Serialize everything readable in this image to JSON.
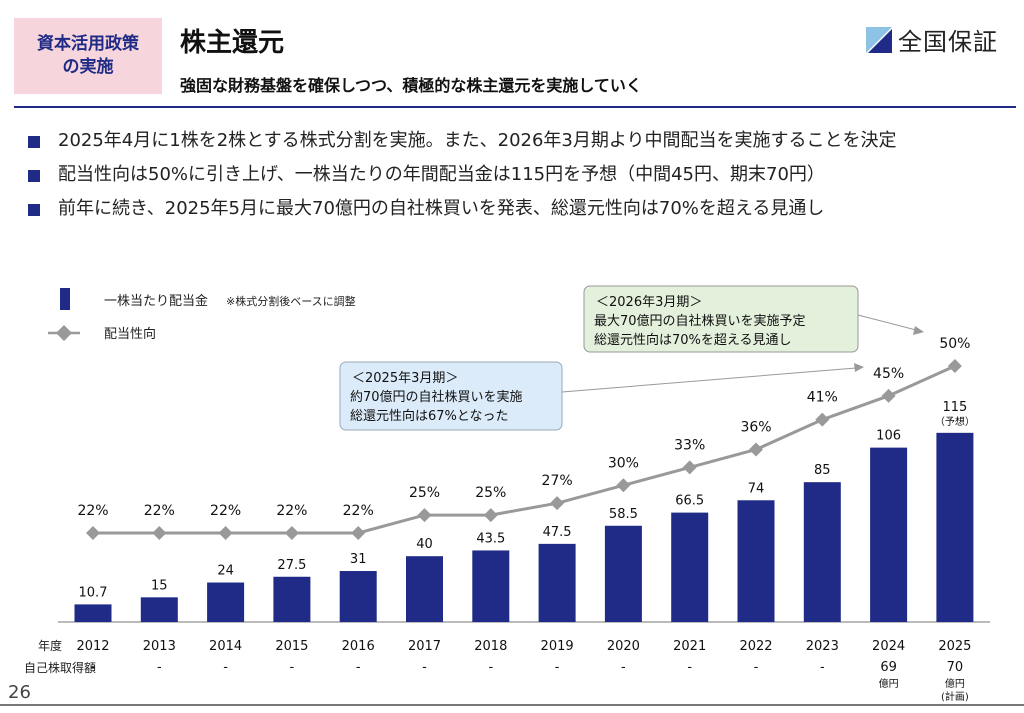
{
  "header": {
    "badge_line1": "資本活用政策",
    "badge_line2": "の実施",
    "title": "株主還元",
    "subtitle": "強固な財務基盤を確保しつつ、積極的な株主還元を実施していく",
    "logo_text": "全国保証"
  },
  "bullets": [
    "2025年4月に1株を2株とする株式分割を実施。また、2026年3月期より中間配当を実施することを決定",
    "配当性向は50%に引き上げ、一株当たりの年間配当金は115円を予想（中間45円、期末70円）",
    "前年に続き、2025年5月に最大70億円の自社株買いを発表、総還元性向は70%を超える見通し"
  ],
  "legend": {
    "bar_label": "一株当たり配当金",
    "bar_note": "※株式分割後ベースに調整",
    "line_label": "配当性向"
  },
  "callouts": [
    {
      "line1": "＜2025年3月期＞",
      "line2": "約70億円の自社株買いを実施",
      "line3": "総還元性向は67%となった"
    },
    {
      "line1": "＜2026年3月期＞",
      "line2": "最大70億円の自社株買いを実施予定",
      "line3": "総還元性向は70%を超える見通し"
    }
  ],
  "row_labels": {
    "year": "年度",
    "buyback": "自己株取得額"
  },
  "forecast_note": "（予想）",
  "buyback_unit": "億円",
  "buyback_plan_note": "(計画)",
  "page_number": "26",
  "colors": {
    "bar": "#1f2b86",
    "line": "#999999",
    "badge_bg": "#f6d6dc",
    "callout_blue": "#dcebfa",
    "callout_green": "#e3f0dc"
  },
  "chart_data": {
    "type": "bar",
    "categories": [
      "2012",
      "2013",
      "2014",
      "2015",
      "2016",
      "2017",
      "2018",
      "2019",
      "2020",
      "2021",
      "2022",
      "2023",
      "2024",
      "2025"
    ],
    "series": [
      {
        "name": "一株当たり配当金",
        "type": "bar",
        "values": [
          10.7,
          15,
          24,
          27.5,
          31,
          40,
          43.5,
          47.5,
          58.5,
          66.5,
          74,
          85,
          106,
          115
        ],
        "labels": [
          "10.7",
          "15",
          "24",
          "27.5",
          "31",
          "40",
          "43.5",
          "47.5",
          "58.5",
          "66.5",
          "74",
          "85",
          "106",
          "115"
        ]
      },
      {
        "name": "配当性向",
        "type": "line",
        "values": [
          22,
          22,
          22,
          22,
          22,
          25,
          25,
          27,
          30,
          33,
          36,
          41,
          45,
          50
        ],
        "labels": [
          "22%",
          "22%",
          "22%",
          "22%",
          "22%",
          "25%",
          "25%",
          "27%",
          "30%",
          "33%",
          "36%",
          "41%",
          "45%",
          "50%"
        ]
      }
    ],
    "buyback": [
      "-",
      "-",
      "-",
      "-",
      "-",
      "-",
      "-",
      "-",
      "-",
      "-",
      "-",
      "-",
      "69",
      "70"
    ],
    "ylim_bar": [
      0,
      150
    ],
    "ylim_line": [
      0,
      60
    ],
    "legend_position": "top-left"
  }
}
